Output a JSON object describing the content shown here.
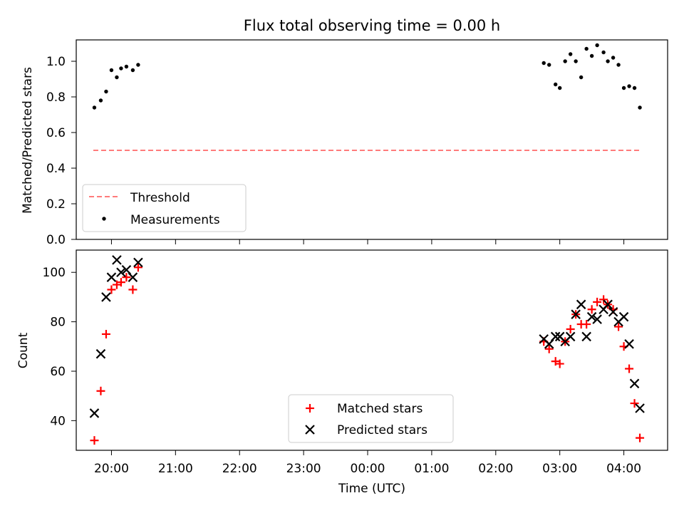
{
  "chart_data": [
    {
      "type": "scatter",
      "title": "Flux total observing time = 0.00 h",
      "xlabel": "",
      "ylabel": "Matched/Predicted stars",
      "ylim": [
        0,
        1.12
      ],
      "yticks": [
        0.0,
        0.2,
        0.4,
        0.6,
        0.8,
        1.0
      ],
      "ytick_labels": [
        "0.0",
        "0.2",
        "0.4",
        "0.6",
        "0.8",
        "1.0"
      ],
      "legend_position": "lower-left",
      "threshold": {
        "name": "Threshold",
        "value": 0.5,
        "color": "#ff7b7b",
        "x_start": "19:43",
        "x_end": "04:16"
      },
      "series": [
        {
          "name": "Measurements",
          "color": "#000000",
          "marker": "dot",
          "x": [
            "19:44",
            "19:50",
            "19:55",
            "20:00",
            "20:05",
            "20:09",
            "20:14",
            "20:20",
            "20:25",
            "02:45",
            "02:50",
            "02:56",
            "03:00",
            "03:05",
            "03:10",
            "03:15",
            "03:20",
            "03:25",
            "03:30",
            "03:35",
            "03:41",
            "03:45",
            "03:50",
            "03:55",
            "04:00",
            "04:05",
            "04:10",
            "04:15"
          ],
          "y": [
            0.74,
            0.78,
            0.83,
            0.95,
            0.91,
            0.96,
            0.97,
            0.95,
            0.98,
            0.99,
            0.98,
            0.87,
            0.85,
            1.0,
            1.04,
            1.0,
            0.91,
            1.07,
            1.03,
            1.09,
            1.05,
            1.0,
            1.02,
            0.98,
            0.85,
            0.86,
            0.85,
            0.74
          ]
        }
      ]
    },
    {
      "type": "scatter",
      "title": "",
      "xlabel": "Time (UTC)",
      "ylabel": "Count",
      "ylim": [
        28,
        109
      ],
      "yticks": [
        40,
        60,
        80,
        100
      ],
      "ytick_labels": [
        "40",
        "60",
        "80",
        "100"
      ],
      "xtick_labels": [
        "20:00",
        "21:00",
        "22:00",
        "23:00",
        "00:00",
        "01:00",
        "02:00",
        "03:00",
        "04:00"
      ],
      "xlim": [
        "19:27",
        "04:41"
      ],
      "legend_position": "lower-center",
      "series": [
        {
          "name": "Matched stars",
          "color": "#ff0000",
          "marker": "plus",
          "x": [
            "19:44",
            "19:50",
            "19:55",
            "20:00",
            "20:05",
            "20:09",
            "20:14",
            "20:20",
            "20:25",
            "02:45",
            "02:50",
            "02:56",
            "03:00",
            "03:05",
            "03:10",
            "03:15",
            "03:20",
            "03:25",
            "03:30",
            "03:35",
            "03:41",
            "03:45",
            "03:50",
            "03:55",
            "04:00",
            "04:05",
            "04:10",
            "04:15"
          ],
          "y": [
            32,
            52,
            75,
            93,
            95,
            96,
            98,
            93,
            102,
            72,
            69,
            64,
            63,
            72,
            77,
            83,
            79,
            79,
            85,
            88,
            89,
            87,
            85,
            78,
            70,
            61,
            47,
            33
          ]
        },
        {
          "name": "Predicted stars",
          "color": "#000000",
          "marker": "x",
          "x": [
            "19:44",
            "19:50",
            "19:55",
            "20:00",
            "20:05",
            "20:09",
            "20:14",
            "20:20",
            "20:25",
            "02:45",
            "02:50",
            "02:56",
            "03:00",
            "03:05",
            "03:10",
            "03:15",
            "03:20",
            "03:25",
            "03:30",
            "03:35",
            "03:41",
            "03:45",
            "03:50",
            "03:55",
            "04:00",
            "04:05",
            "04:10",
            "04:15"
          ],
          "y": [
            43,
            67,
            90,
            98,
            105,
            100,
            101,
            98,
            104,
            73,
            71,
            74,
            74,
            72,
            74,
            83,
            87,
            74,
            82,
            81,
            85,
            87,
            84,
            80,
            82,
            71,
            55,
            45
          ]
        }
      ]
    }
  ]
}
